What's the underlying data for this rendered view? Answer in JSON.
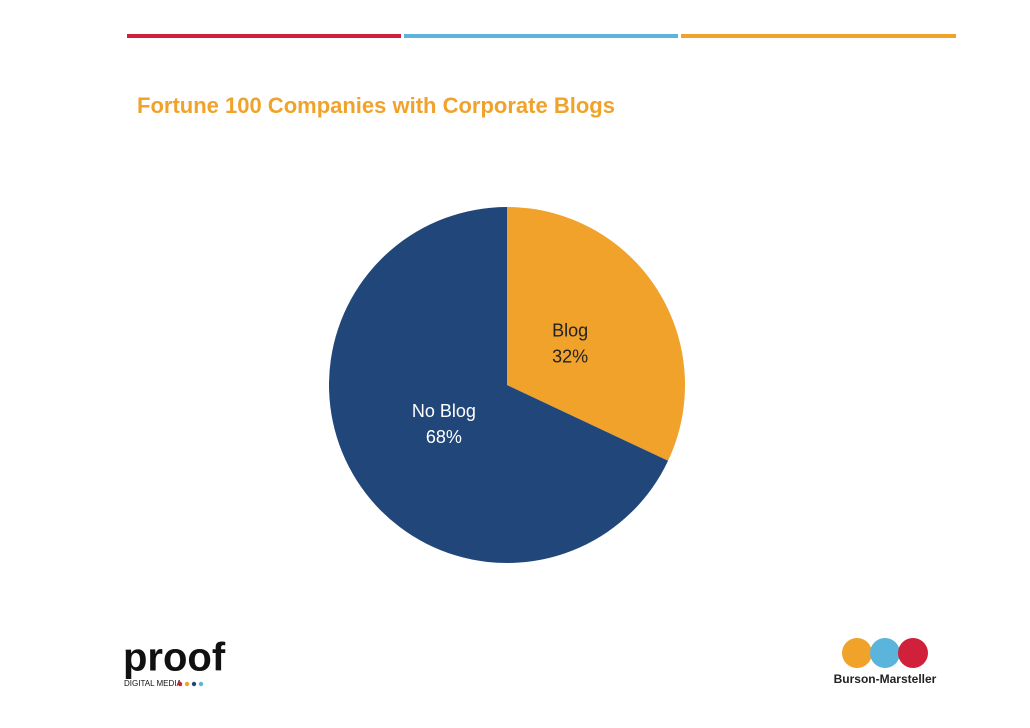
{
  "chart_data": {
    "type": "pie",
    "title": "Fortune 100 Companies with Corporate Blogs",
    "categories": [
      "Blog",
      "No Blog"
    ],
    "values": [
      32,
      68
    ],
    "value_labels": [
      "32%",
      "68%"
    ],
    "colors": [
      "#f0a22a",
      "#21477a"
    ]
  },
  "logos": {
    "left": "proof",
    "left_tagline": "DIGITAL MEDIA",
    "right": "Burson-Marsteller"
  }
}
